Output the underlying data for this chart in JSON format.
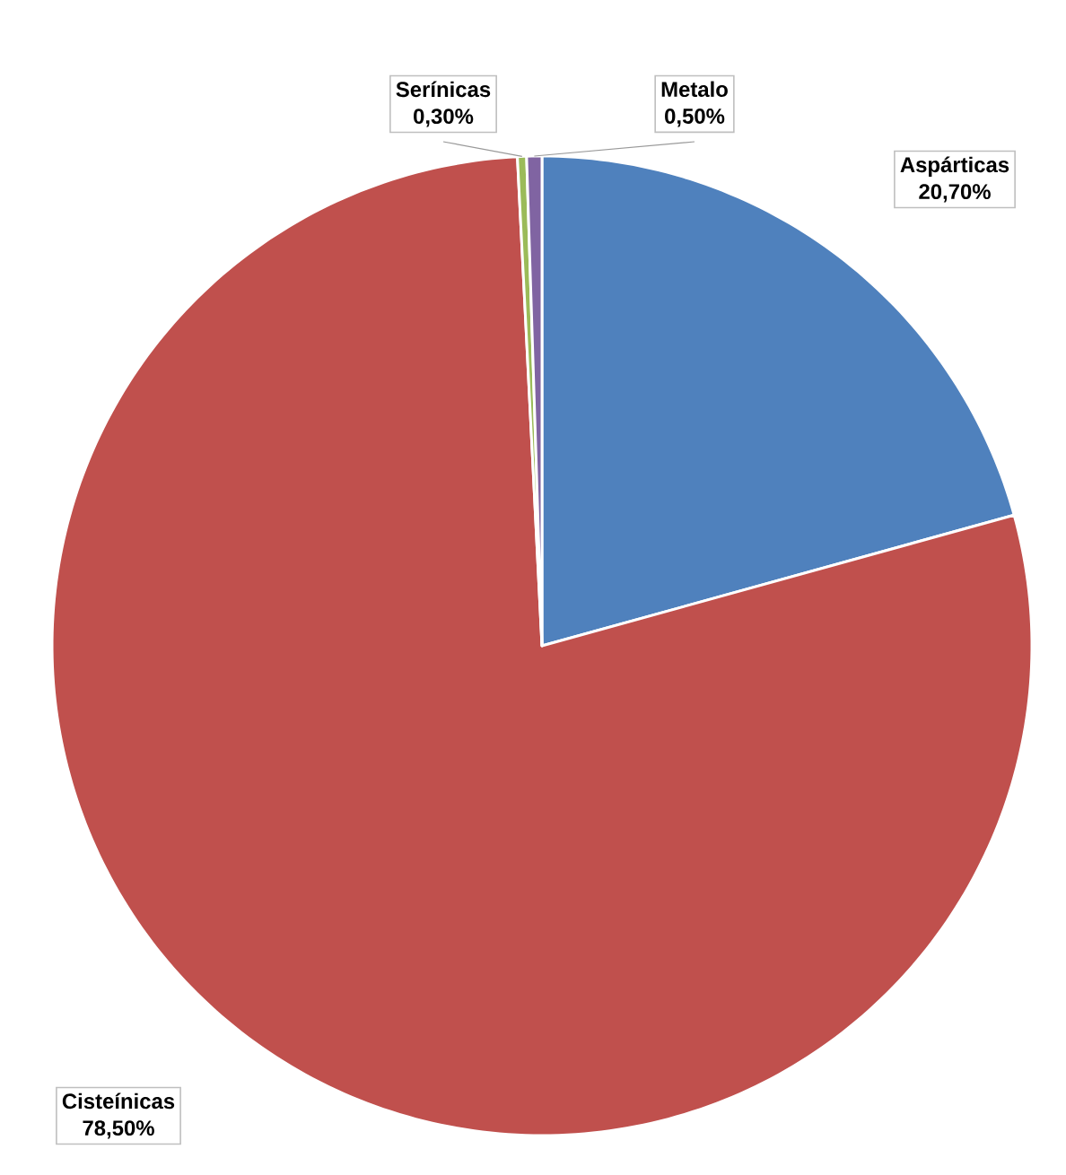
{
  "chart_data": {
    "type": "pie",
    "categories": [
      "Aspárticas",
      "Cisteínicas",
      "Serínicas",
      "Metalo"
    ],
    "values": [
      20.7,
      78.5,
      0.3,
      0.5
    ],
    "colors": [
      "#4f81bd",
      "#c0504d",
      "#9bbb59",
      "#8064a2"
    ],
    "value_labels": [
      "20,70%",
      "78,50%",
      "0,30%",
      "0,50%"
    ]
  }
}
